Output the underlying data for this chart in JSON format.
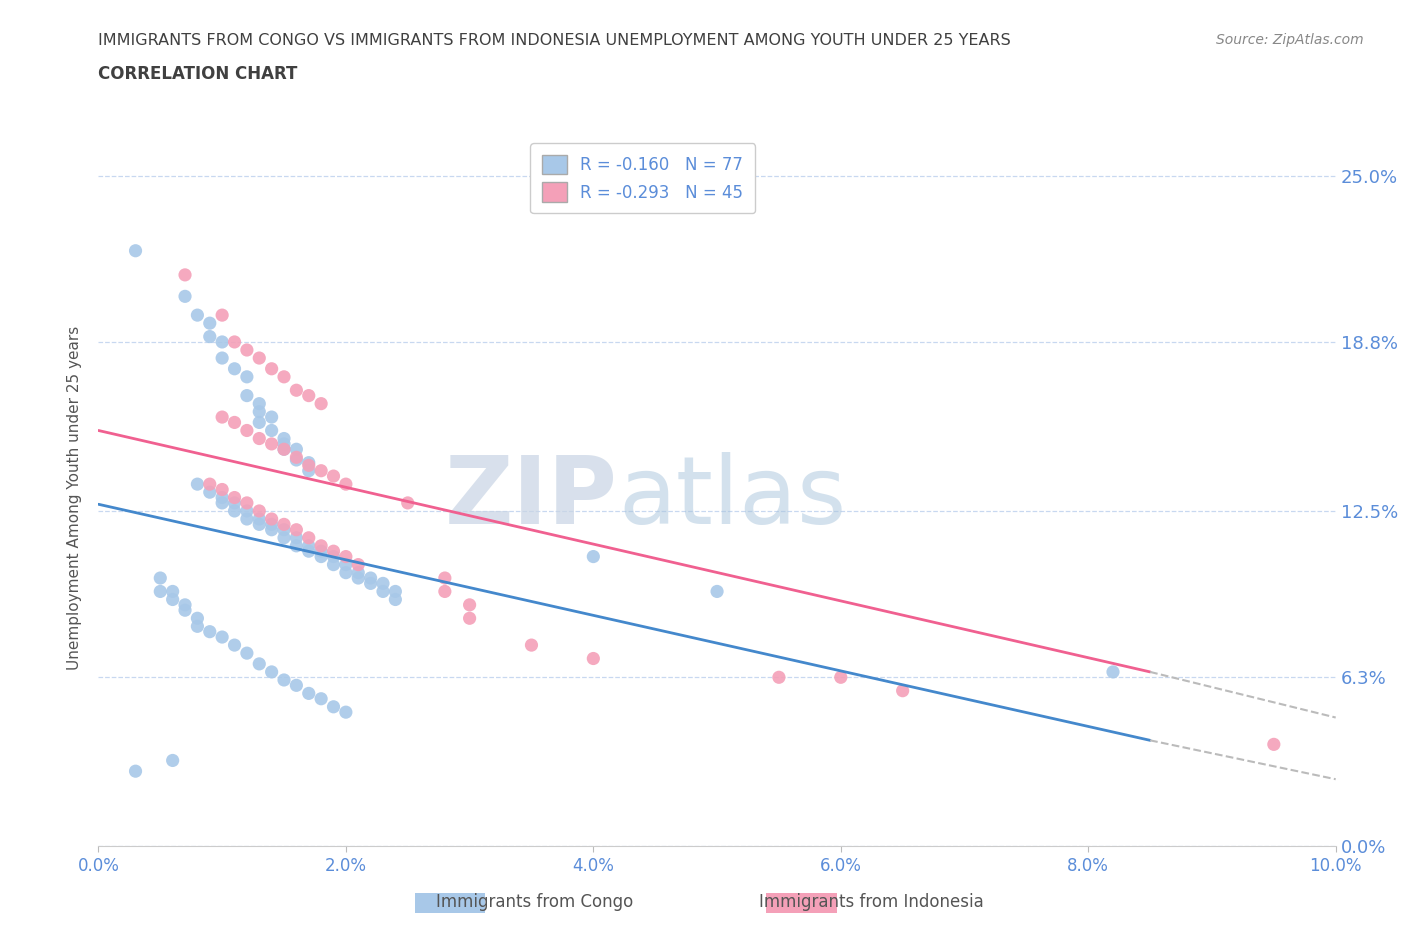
{
  "title_line1": "IMMIGRANTS FROM CONGO VS IMMIGRANTS FROM INDONESIA UNEMPLOYMENT AMONG YOUTH UNDER 25 YEARS",
  "title_line2": "CORRELATION CHART",
  "source": "Source: ZipAtlas.com",
  "ylabel": "Unemployment Among Youth under 25 years",
  "xlim": [
    0.0,
    0.1
  ],
  "ylim": [
    0.0,
    0.26
  ],
  "yticks": [
    0.0,
    0.063,
    0.125,
    0.188,
    0.25
  ],
  "ytick_labels": [
    "0.0%",
    "6.3%",
    "12.5%",
    "18.8%",
    "25.0%"
  ],
  "xticks": [
    0.0,
    0.02,
    0.04,
    0.06,
    0.08,
    0.1
  ],
  "xtick_labels": [
    "0.0%",
    "2.0%",
    "4.0%",
    "6.0%",
    "8.0%",
    "10.0%"
  ],
  "congo_color": "#a8c8e8",
  "indonesia_color": "#f4a0b8",
  "congo_line_color": "#4488cc",
  "indonesia_line_color": "#f06090",
  "trendline_extend_color": "#bbbbbb",
  "R_congo": -0.16,
  "N_congo": 77,
  "R_indonesia": -0.293,
  "N_indonesia": 45,
  "legend_label_congo": "Immigrants from Congo",
  "legend_label_indonesia": "Immigrants from Indonesia",
  "watermark_zip": "ZIP",
  "watermark_atlas": "atlas",
  "grid_color": "#c8d8f0",
  "axis_label_color": "#5b8dd9",
  "title_color": "#404040",
  "congo_scatter": [
    [
      0.003,
      0.222
    ],
    [
      0.007,
      0.205
    ],
    [
      0.008,
      0.198
    ],
    [
      0.009,
      0.195
    ],
    [
      0.009,
      0.19
    ],
    [
      0.01,
      0.188
    ],
    [
      0.01,
      0.182
    ],
    [
      0.011,
      0.178
    ],
    [
      0.012,
      0.175
    ],
    [
      0.012,
      0.168
    ],
    [
      0.013,
      0.165
    ],
    [
      0.013,
      0.162
    ],
    [
      0.013,
      0.158
    ],
    [
      0.014,
      0.16
    ],
    [
      0.014,
      0.155
    ],
    [
      0.015,
      0.152
    ],
    [
      0.015,
      0.15
    ],
    [
      0.015,
      0.148
    ],
    [
      0.016,
      0.148
    ],
    [
      0.016,
      0.144
    ],
    [
      0.017,
      0.143
    ],
    [
      0.017,
      0.14
    ],
    [
      0.008,
      0.135
    ],
    [
      0.009,
      0.132
    ],
    [
      0.01,
      0.13
    ],
    [
      0.01,
      0.128
    ],
    [
      0.011,
      0.128
    ],
    [
      0.011,
      0.125
    ],
    [
      0.012,
      0.125
    ],
    [
      0.012,
      0.122
    ],
    [
      0.013,
      0.122
    ],
    [
      0.013,
      0.12
    ],
    [
      0.014,
      0.12
    ],
    [
      0.014,
      0.118
    ],
    [
      0.015,
      0.118
    ],
    [
      0.015,
      0.115
    ],
    [
      0.016,
      0.115
    ],
    [
      0.016,
      0.112
    ],
    [
      0.017,
      0.112
    ],
    [
      0.017,
      0.11
    ],
    [
      0.018,
      0.11
    ],
    [
      0.018,
      0.108
    ],
    [
      0.019,
      0.108
    ],
    [
      0.019,
      0.105
    ],
    [
      0.02,
      0.105
    ],
    [
      0.02,
      0.102
    ],
    [
      0.021,
      0.102
    ],
    [
      0.021,
      0.1
    ],
    [
      0.022,
      0.1
    ],
    [
      0.022,
      0.098
    ],
    [
      0.023,
      0.098
    ],
    [
      0.023,
      0.095
    ],
    [
      0.024,
      0.095
    ],
    [
      0.024,
      0.092
    ],
    [
      0.005,
      0.1
    ],
    [
      0.005,
      0.095
    ],
    [
      0.006,
      0.095
    ],
    [
      0.006,
      0.092
    ],
    [
      0.007,
      0.09
    ],
    [
      0.007,
      0.088
    ],
    [
      0.008,
      0.085
    ],
    [
      0.008,
      0.082
    ],
    [
      0.009,
      0.08
    ],
    [
      0.01,
      0.078
    ],
    [
      0.011,
      0.075
    ],
    [
      0.012,
      0.072
    ],
    [
      0.013,
      0.068
    ],
    [
      0.014,
      0.065
    ],
    [
      0.015,
      0.062
    ],
    [
      0.016,
      0.06
    ],
    [
      0.017,
      0.057
    ],
    [
      0.018,
      0.055
    ],
    [
      0.019,
      0.052
    ],
    [
      0.02,
      0.05
    ],
    [
      0.04,
      0.108
    ],
    [
      0.05,
      0.095
    ],
    [
      0.082,
      0.065
    ],
    [
      0.006,
      0.032
    ],
    [
      0.003,
      0.028
    ]
  ],
  "indonesia_scatter": [
    [
      0.007,
      0.213
    ],
    [
      0.01,
      0.198
    ],
    [
      0.011,
      0.188
    ],
    [
      0.012,
      0.185
    ],
    [
      0.013,
      0.182
    ],
    [
      0.014,
      0.178
    ],
    [
      0.015,
      0.175
    ],
    [
      0.016,
      0.17
    ],
    [
      0.017,
      0.168
    ],
    [
      0.018,
      0.165
    ],
    [
      0.01,
      0.16
    ],
    [
      0.011,
      0.158
    ],
    [
      0.012,
      0.155
    ],
    [
      0.013,
      0.152
    ],
    [
      0.014,
      0.15
    ],
    [
      0.015,
      0.148
    ],
    [
      0.016,
      0.145
    ],
    [
      0.017,
      0.142
    ],
    [
      0.018,
      0.14
    ],
    [
      0.019,
      0.138
    ],
    [
      0.02,
      0.135
    ],
    [
      0.009,
      0.135
    ],
    [
      0.01,
      0.133
    ],
    [
      0.011,
      0.13
    ],
    [
      0.012,
      0.128
    ],
    [
      0.013,
      0.125
    ],
    [
      0.014,
      0.122
    ],
    [
      0.015,
      0.12
    ],
    [
      0.016,
      0.118
    ],
    [
      0.017,
      0.115
    ],
    [
      0.018,
      0.112
    ],
    [
      0.019,
      0.11
    ],
    [
      0.02,
      0.108
    ],
    [
      0.021,
      0.105
    ],
    [
      0.025,
      0.128
    ],
    [
      0.028,
      0.1
    ],
    [
      0.028,
      0.095
    ],
    [
      0.03,
      0.09
    ],
    [
      0.03,
      0.085
    ],
    [
      0.035,
      0.075
    ],
    [
      0.04,
      0.07
    ],
    [
      0.055,
      0.063
    ],
    [
      0.06,
      0.063
    ],
    [
      0.065,
      0.058
    ],
    [
      0.095,
      0.038
    ]
  ],
  "congo_trendline": [
    0.0,
    0.085,
    0.1275,
    0.0395
  ],
  "indo_trendline_solid": [
    0.0,
    0.085,
    0.155,
    0.065
  ],
  "congo_trendline_ext": [
    0.085,
    0.1,
    0.0395,
    0.025
  ],
  "indo_trendline_ext": [
    0.085,
    0.1,
    0.065,
    0.048
  ]
}
